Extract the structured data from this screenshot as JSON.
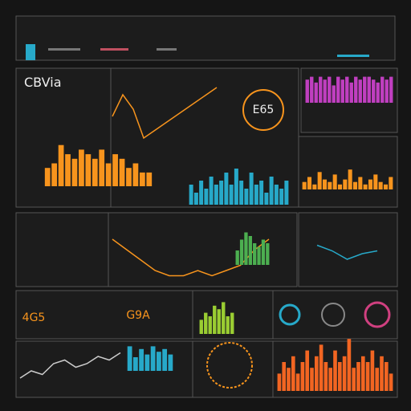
{
  "header": {
    "title": "CBVia"
  },
  "readouts": [
    "E65",
    "G9A",
    "4G5"
  ],
  "charts": [
    {
      "type": "bar",
      "color": "#f7941d",
      "ylim": [
        0,
        10
      ],
      "values": [
        4,
        5,
        9,
        7,
        6,
        8,
        7,
        6,
        8,
        5,
        7,
        6,
        4,
        5,
        3,
        3
      ]
    },
    {
      "type": "line",
      "color": "#f7941d",
      "ylim": [
        0,
        10
      ],
      "values": [
        5,
        8,
        6,
        2,
        3,
        4,
        5,
        6,
        7,
        8,
        9
      ]
    },
    {
      "type": "bar",
      "color": "#27a9c9",
      "ylim": [
        0,
        10
      ],
      "values": [
        5,
        3,
        6,
        4,
        7,
        5,
        6,
        8,
        5,
        9,
        6,
        4,
        8,
        5,
        6,
        3,
        7,
        5,
        4,
        6
      ]
    },
    {
      "type": "bar",
      "color": "#c03fc0",
      "ylim": [
        0,
        10
      ],
      "values": [
        8,
        9,
        7,
        9,
        8,
        9,
        6,
        9,
        8,
        9,
        7,
        9,
        8,
        9,
        9,
        8,
        7,
        9,
        8,
        9
      ]
    },
    {
      "type": "bar",
      "color": "#f7941d",
      "ylim": [
        0,
        10
      ],
      "values": [
        3,
        5,
        2,
        7,
        4,
        3,
        6,
        2,
        4,
        8,
        3,
        5,
        2,
        4,
        6,
        3,
        2,
        5
      ]
    },
    {
      "type": "line",
      "color": "#f7941d",
      "ylim": [
        0,
        10
      ],
      "values": [
        8,
        6,
        4,
        2,
        1,
        1,
        2,
        1,
        2,
        3,
        6,
        8
      ]
    },
    {
      "type": "bar",
      "color": "#4caf50",
      "ylim": [
        0,
        10
      ],
      "values": [
        4,
        7,
        9,
        8,
        6,
        5,
        7,
        6
      ]
    },
    {
      "type": "line",
      "color": "#27a9c9",
      "ylim": [
        0,
        10
      ],
      "values": [
        7,
        5,
        2,
        4,
        5
      ]
    },
    {
      "type": "bar",
      "color": "#9acd32",
      "ylim": [
        0,
        10
      ],
      "values": [
        4,
        6,
        5,
        8,
        7,
        9,
        5,
        6
      ]
    },
    {
      "type": "line",
      "color": "#cccccc",
      "ylim": [
        0,
        10
      ],
      "values": [
        2,
        4,
        3,
        6,
        7,
        5,
        6,
        8,
        7,
        9
      ]
    },
    {
      "type": "bar",
      "color": "#27a9c9",
      "ylim": [
        0,
        10
      ],
      "values": [
        9,
        5,
        8,
        6,
        9,
        7,
        8,
        6
      ]
    },
    {
      "type": "bar",
      "color": "#f26522",
      "ylim": [
        0,
        10
      ],
      "values": [
        3,
        5,
        4,
        6,
        3,
        5,
        7,
        4,
        6,
        8,
        5,
        4,
        7,
        5,
        6,
        9,
        4,
        5,
        6,
        5,
        7,
        4,
        6,
        5,
        3
      ]
    }
  ]
}
